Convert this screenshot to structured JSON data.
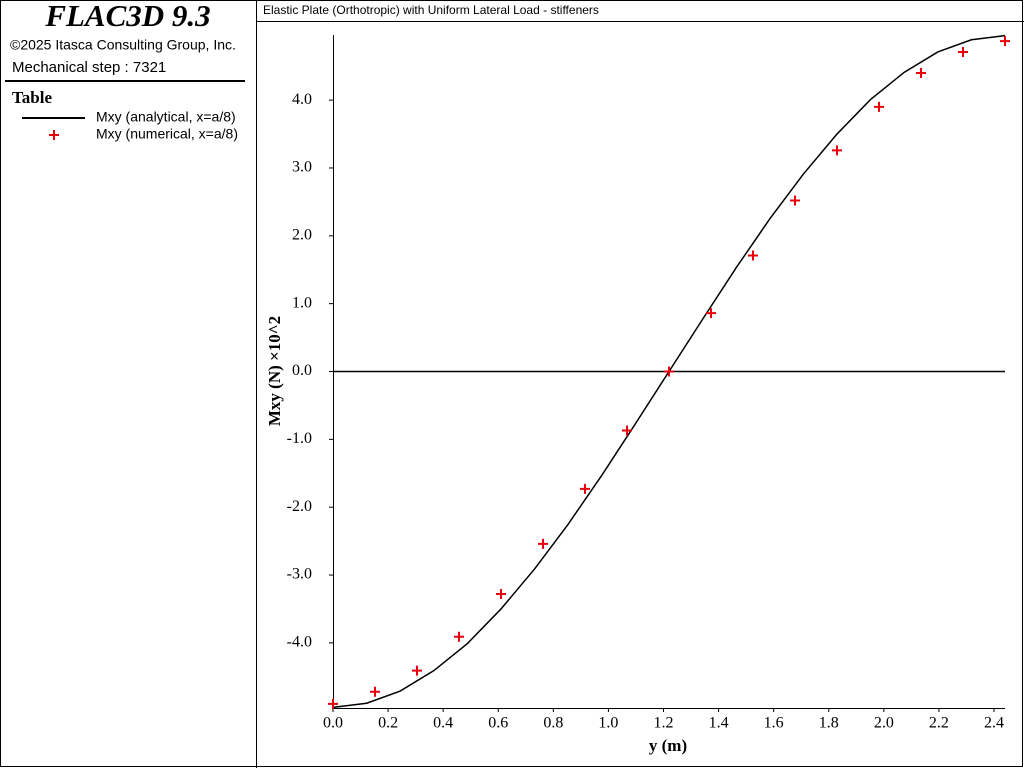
{
  "panel": {
    "app": "FLAC3D 9.3",
    "copyright": "©2025 Itasca Consulting Group, Inc.",
    "step": "Mechanical step : 7321"
  },
  "chart_data": {
    "type": "line",
    "title": "Elastic Plate (Orthotropic) with Uniform Lateral Load - stiffeners",
    "legend_title": "Table",
    "xlabel": "y (m)",
    "ylabel": "Mxy (N) ×10^2",
    "xlim": [
      0,
      2.44
    ],
    "ylim": [
      -4.96,
      4.96
    ],
    "xticks": [
      {
        "value": 0,
        "label": "0.0"
      },
      {
        "value": 0.2,
        "label": "0.2"
      },
      {
        "value": 0.4,
        "label": "0.4"
      },
      {
        "value": 0.6,
        "label": "0.6"
      },
      {
        "value": 0.8,
        "label": "0.8"
      },
      {
        "value": 1,
        "label": "1.0"
      },
      {
        "value": 1.2,
        "label": "1.2"
      },
      {
        "value": 1.4,
        "label": "1.4"
      },
      {
        "value": 1.6,
        "label": "1.6"
      },
      {
        "value": 1.8,
        "label": "1.8"
      },
      {
        "value": 2,
        "label": "2.0"
      },
      {
        "value": 2.2,
        "label": "2.2"
      },
      {
        "value": 2.4,
        "label": "2.4"
      }
    ],
    "yticks": [
      {
        "value": -4,
        "label": "-4.0"
      },
      {
        "value": -3,
        "label": "-3.0"
      },
      {
        "value": -2,
        "label": "-2.0"
      },
      {
        "value": -1,
        "label": "-1.0"
      },
      {
        "value": 0,
        "label": "0.0"
      },
      {
        "value": 1,
        "label": "1.0"
      },
      {
        "value": 2,
        "label": "2.0"
      },
      {
        "value": 3,
        "label": "3.0"
      },
      {
        "value": 4,
        "label": "4.0"
      }
    ],
    "zero_line": true,
    "series": [
      {
        "name": "Mxy (analytical, x=a/8)",
        "color": "#000000",
        "mode": "line",
        "x": [
          0,
          0.122,
          0.244,
          0.366,
          0.488,
          0.61,
          0.732,
          0.854,
          0.976,
          1.098,
          1.22,
          1.342,
          1.464,
          1.586,
          1.708,
          1.83,
          1.952,
          2.074,
          2.196,
          2.318,
          2.44
        ],
        "values": [
          -4.95,
          -4.89,
          -4.71,
          -4.41,
          -4.01,
          -3.5,
          -2.91,
          -2.25,
          -1.53,
          -0.77,
          0,
          0.77,
          1.53,
          2.25,
          2.91,
          3.5,
          4.01,
          4.41,
          4.71,
          4.89,
          4.95
        ]
      },
      {
        "name": "Mxy (numerical, x=a/8)",
        "color": "#e8000b",
        "mode": "markers",
        "x": [
          0,
          0.1525,
          0.305,
          0.4575,
          0.61,
          0.7625,
          0.915,
          1.0675,
          1.22,
          1.3725,
          1.525,
          1.6775,
          1.83,
          1.9825,
          2.135,
          2.2875,
          2.44
        ],
        "values": [
          -4.9,
          -4.72,
          -4.41,
          -3.91,
          -3.28,
          -2.54,
          -1.73,
          -0.87,
          0,
          0.86,
          1.71,
          2.52,
          3.26,
          3.9,
          4.4,
          4.71,
          4.87
        ]
      }
    ]
  }
}
